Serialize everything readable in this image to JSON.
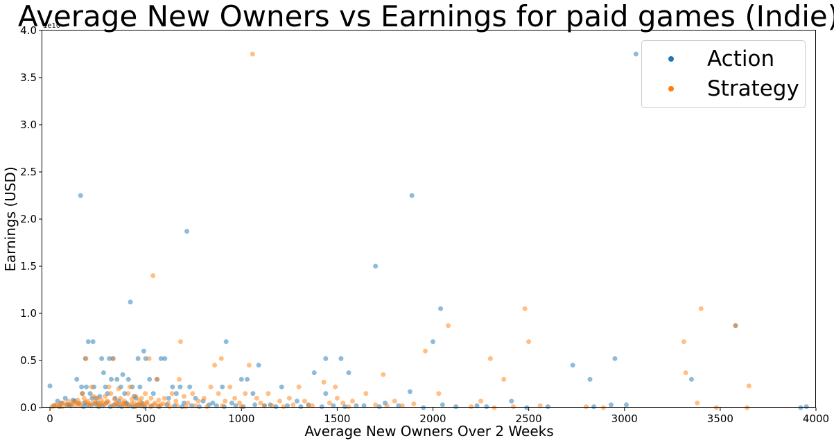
{
  "chart_data": {
    "type": "scatter",
    "title": "Average New Owners vs Earnings for paid games (Indie)",
    "xlabel": "Average New Owners Over 2 Weeks",
    "ylabel": "Earnings (USD)",
    "y_offset_label": "1e10",
    "xlim": [
      -40,
      4000
    ],
    "ylim": [
      0,
      4.0
    ],
    "x_ticks": [
      "0",
      "500",
      "1000",
      "1500",
      "2000",
      "2500",
      "3000",
      "3500",
      "4000"
    ],
    "x_tick_values": [
      0,
      500,
      1000,
      1500,
      2000,
      2500,
      3000,
      3500,
      4000
    ],
    "y_ticks": [
      "0.0",
      "0.5",
      "1.0",
      "1.5",
      "2.0",
      "2.5",
      "3.0",
      "3.5",
      "4.0"
    ],
    "y_tick_values": [
      0,
      0.5,
      1.0,
      1.5,
      2.0,
      2.5,
      3.0,
      3.5,
      4.0
    ],
    "grid": false,
    "legend_position": "top-right",
    "series": [
      {
        "name": "Action",
        "color": "#1f77b4",
        "points": [
          [
            0,
            0.23
          ],
          [
            40,
            0.07
          ],
          [
            60,
            0.05
          ],
          [
            80,
            0.1
          ],
          [
            100,
            0.03
          ],
          [
            120,
            0.08
          ],
          [
            130,
            0.07
          ],
          [
            140,
            0.3
          ],
          [
            160,
            2.25
          ],
          [
            165,
            0.22
          ],
          [
            170,
            0.15
          ],
          [
            180,
            0.05
          ],
          [
            185,
            0.52
          ],
          [
            190,
            0.22
          ],
          [
            200,
            0.7
          ],
          [
            210,
            0.15
          ],
          [
            220,
            0.1
          ],
          [
            225,
            0.7
          ],
          [
            230,
            0.22
          ],
          [
            240,
            0.1
          ],
          [
            250,
            0.05
          ],
          [
            260,
            0.12
          ],
          [
            270,
            0.52
          ],
          [
            280,
            0.37
          ],
          [
            290,
            0.22
          ],
          [
            300,
            0.15
          ],
          [
            310,
            0.52
          ],
          [
            320,
            0.3
          ],
          [
            330,
            0.52
          ],
          [
            340,
            0.1
          ],
          [
            350,
            0.3
          ],
          [
            360,
            0.07
          ],
          [
            370,
            0.22
          ],
          [
            380,
            0.35
          ],
          [
            390,
            0.15
          ],
          [
            400,
            0.05
          ],
          [
            410,
            0.3
          ],
          [
            420,
            1.12
          ],
          [
            430,
            0.22
          ],
          [
            440,
            0.12
          ],
          [
            450,
            0.1
          ],
          [
            460,
            0.52
          ],
          [
            470,
            0.22
          ],
          [
            480,
            0.05
          ],
          [
            490,
            0.6
          ],
          [
            500,
            0.52
          ],
          [
            520,
            0.3
          ],
          [
            540,
            0.15
          ],
          [
            560,
            0.3
          ],
          [
            580,
            0.52
          ],
          [
            600,
            0.52
          ],
          [
            620,
            0.1
          ],
          [
            640,
            0.22
          ],
          [
            660,
            0.15
          ],
          [
            680,
            0.22
          ],
          [
            700,
            0.05
          ],
          [
            715,
            1.87
          ],
          [
            730,
            0.22
          ],
          [
            760,
            0.1
          ],
          [
            800,
            0.07
          ],
          [
            850,
            0.05
          ],
          [
            900,
            0.22
          ],
          [
            920,
            0.7
          ],
          [
            950,
            0.05
          ],
          [
            1000,
            0.3
          ],
          [
            1030,
            0.3
          ],
          [
            1060,
            0.15
          ],
          [
            1090,
            0.45
          ],
          [
            1150,
            0.03
          ],
          [
            1210,
            0.22
          ],
          [
            1290,
            0.07
          ],
          [
            1380,
            0.37
          ],
          [
            1440,
            0.52
          ],
          [
            1440,
            0.15
          ],
          [
            1520,
            0.52
          ],
          [
            1560,
            0.37
          ],
          [
            1600,
            0.02
          ],
          [
            1700,
            1.5
          ],
          [
            1750,
            0.05
          ],
          [
            1880,
            0.17
          ],
          [
            1890,
            2.25
          ],
          [
            1950,
            0.0
          ],
          [
            2000,
            0.7
          ],
          [
            2040,
            1.05
          ],
          [
            2050,
            0.03
          ],
          [
            2230,
            0.02
          ],
          [
            2280,
            0.01
          ],
          [
            2410,
            0.07
          ],
          [
            2490,
            0.0
          ],
          [
            2600,
            0.01
          ],
          [
            2730,
            0.45
          ],
          [
            2820,
            0.3
          ],
          [
            2840,
            0.01
          ],
          [
            2930,
            0.03
          ],
          [
            2950,
            0.52
          ],
          [
            3010,
            0.03
          ],
          [
            3060,
            3.75
          ],
          [
            3350,
            0.3
          ],
          [
            3580,
            0.87
          ],
          [
            3920,
            0.0
          ],
          [
            3950,
            0.01
          ],
          [
            20,
            0.02
          ],
          [
            50,
            0.01
          ],
          [
            90,
            0.03
          ],
          [
            110,
            0.02
          ],
          [
            150,
            0.04
          ],
          [
            175,
            0.01
          ],
          [
            195,
            0.03
          ],
          [
            215,
            0.02
          ],
          [
            235,
            0.04
          ],
          [
            255,
            0.01
          ],
          [
            275,
            0.02
          ],
          [
            295,
            0.05
          ],
          [
            315,
            0.01
          ],
          [
            335,
            0.03
          ],
          [
            355,
            0.02
          ],
          [
            375,
            0.01
          ],
          [
            395,
            0.04
          ],
          [
            415,
            0.02
          ],
          [
            435,
            0.01
          ],
          [
            455,
            0.03
          ],
          [
            475,
            0.02
          ],
          [
            495,
            0.01
          ],
          [
            530,
            0.02
          ],
          [
            570,
            0.01
          ],
          [
            610,
            0.03
          ],
          [
            650,
            0.02
          ],
          [
            690,
            0.01
          ],
          [
            740,
            0.02
          ],
          [
            780,
            0.01
          ],
          [
            830,
            0.03
          ],
          [
            870,
            0.02
          ],
          [
            910,
            0.01
          ],
          [
            970,
            0.02
          ],
          [
            1010,
            0.01
          ],
          [
            1070,
            0.03
          ],
          [
            1120,
            0.02
          ],
          [
            1180,
            0.01
          ],
          [
            1240,
            0.02
          ],
          [
            1310,
            0.01
          ],
          [
            1350,
            0.03
          ],
          [
            1420,
            0.01
          ],
          [
            1480,
            0.02
          ],
          [
            1540,
            0.01
          ],
          [
            1640,
            0.02
          ],
          [
            1720,
            0.01
          ],
          [
            1820,
            0.02
          ],
          [
            2120,
            0.01
          ]
        ]
      },
      {
        "name": "Strategy",
        "color": "#ff7f0e",
        "points": [
          [
            10,
            0.01
          ],
          [
            30,
            0.03
          ],
          [
            45,
            0.02
          ],
          [
            70,
            0.05
          ],
          [
            85,
            0.03
          ],
          [
            95,
            0.07
          ],
          [
            115,
            0.04
          ],
          [
            125,
            0.06
          ],
          [
            135,
            0.02
          ],
          [
            145,
            0.08
          ],
          [
            155,
            0.05
          ],
          [
            168,
            0.15
          ],
          [
            178,
            0.1
          ],
          [
            188,
            0.52
          ],
          [
            198,
            0.07
          ],
          [
            208,
            0.04
          ],
          [
            218,
            0.22
          ],
          [
            228,
            0.12
          ],
          [
            238,
            0.06
          ],
          [
            248,
            0.1
          ],
          [
            258,
            0.03
          ],
          [
            268,
            0.08
          ],
          [
            278,
            0.05
          ],
          [
            288,
            0.12
          ],
          [
            298,
            0.07
          ],
          [
            308,
            0.22
          ],
          [
            318,
            0.15
          ],
          [
            328,
            0.52
          ],
          [
            338,
            0.09
          ],
          [
            348,
            0.05
          ],
          [
            358,
            0.2
          ],
          [
            368,
            0.1
          ],
          [
            378,
            0.04
          ],
          [
            388,
            0.07
          ],
          [
            398,
            0.02
          ],
          [
            408,
            0.15
          ],
          [
            418,
            0.22
          ],
          [
            428,
            0.09
          ],
          [
            438,
            0.05
          ],
          [
            448,
            0.12
          ],
          [
            458,
            0.03
          ],
          [
            468,
            0.07
          ],
          [
            478,
            0.1
          ],
          [
            488,
            0.04
          ],
          [
            498,
            0.15
          ],
          [
            508,
            0.06
          ],
          [
            518,
            0.52
          ],
          [
            528,
            0.1
          ],
          [
            538,
            1.4
          ],
          [
            548,
            0.05
          ],
          [
            558,
            0.3
          ],
          [
            568,
            0.08
          ],
          [
            578,
            0.03
          ],
          [
            598,
            0.1
          ],
          [
            618,
            0.05
          ],
          [
            638,
            0.15
          ],
          [
            658,
            0.07
          ],
          [
            675,
            0.3
          ],
          [
            682,
            0.7
          ],
          [
            700,
            0.12
          ],
          [
            720,
            0.05
          ],
          [
            745,
            0.15
          ],
          [
            775,
            0.07
          ],
          [
            805,
            0.1
          ],
          [
            840,
            0.22
          ],
          [
            860,
            0.45
          ],
          [
            880,
            0.15
          ],
          [
            895,
            0.52
          ],
          [
            915,
            0.07
          ],
          [
            940,
            0.22
          ],
          [
            965,
            0.1
          ],
          [
            990,
            0.05
          ],
          [
            1020,
            0.15
          ],
          [
            1040,
            0.45
          ],
          [
            1058,
            3.75
          ],
          [
            1080,
            0.1
          ],
          [
            1100,
            0.05
          ],
          [
            1140,
            0.15
          ],
          [
            1160,
            0.02
          ],
          [
            1200,
            0.07
          ],
          [
            1250,
            0.1
          ],
          [
            1270,
            0.03
          ],
          [
            1300,
            0.22
          ],
          [
            1330,
            0.07
          ],
          [
            1370,
            0.02
          ],
          [
            1430,
            0.27
          ],
          [
            1460,
            0.05
          ],
          [
            1490,
            0.22
          ],
          [
            1500,
            0.1
          ],
          [
            1530,
            0.05
          ],
          [
            1580,
            0.07
          ],
          [
            1650,
            0.15
          ],
          [
            1700,
            0.03
          ],
          [
            1740,
            0.35
          ],
          [
            1800,
            0.07
          ],
          [
            1840,
            0.02
          ],
          [
            1900,
            0.04
          ],
          [
            1960,
            0.6
          ],
          [
            2030,
            0.15
          ],
          [
            2080,
            0.87
          ],
          [
            2250,
            0.07
          ],
          [
            2300,
            0.52
          ],
          [
            2370,
            0.3
          ],
          [
            2480,
            1.05
          ],
          [
            2500,
            0.7
          ],
          [
            2560,
            0.02
          ],
          [
            2800,
            0.01
          ],
          [
            2890,
            0.0
          ],
          [
            3310,
            0.7
          ],
          [
            3320,
            0.37
          ],
          [
            3380,
            0.05
          ],
          [
            3400,
            1.05
          ],
          [
            3480,
            0.0
          ],
          [
            3580,
            0.87
          ],
          [
            3640,
            0.0
          ],
          [
            3650,
            0.23
          ],
          [
            25,
            0.02
          ],
          [
            55,
            0.04
          ],
          [
            65,
            0.01
          ],
          [
            105,
            0.03
          ],
          [
            140,
            0.05
          ],
          [
            160,
            0.02
          ],
          [
            185,
            0.06
          ],
          [
            205,
            0.03
          ],
          [
            225,
            0.05
          ],
          [
            245,
            0.02
          ],
          [
            265,
            0.04
          ],
          [
            285,
            0.03
          ],
          [
            305,
            0.06
          ],
          [
            325,
            0.02
          ],
          [
            345,
            0.04
          ],
          [
            365,
            0.03
          ],
          [
            385,
            0.05
          ],
          [
            405,
            0.02
          ],
          [
            425,
            0.04
          ],
          [
            445,
            0.01
          ],
          [
            465,
            0.03
          ],
          [
            485,
            0.02
          ],
          [
            505,
            0.04
          ],
          [
            525,
            0.01
          ],
          [
            545,
            0.03
          ],
          [
            565,
            0.02
          ],
          [
            590,
            0.04
          ],
          [
            625,
            0.01
          ],
          [
            665,
            0.02
          ],
          [
            710,
            0.01
          ],
          [
            760,
            0.02
          ],
          [
            820,
            0.01
          ],
          [
            900,
            0.02
          ],
          [
            1000,
            0.01
          ],
          [
            1120,
            0.02
          ],
          [
            1220,
            0.01
          ],
          [
            1350,
            0.02
          ],
          [
            1560,
            0.01
          ],
          [
            1760,
            0.02
          ],
          [
            2200,
            0.01
          ],
          [
            2320,
            0.0
          ],
          [
            2420,
            0.01
          ]
        ]
      }
    ]
  }
}
